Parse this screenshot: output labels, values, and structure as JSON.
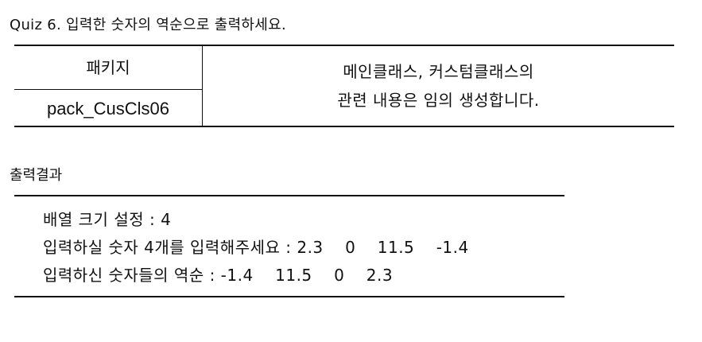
{
  "quiz_title": "Quiz 6. 입력한 숫자의 역순으로 출력하세요.",
  "package_table": {
    "header": "패키지",
    "package_name": "pack_CusCls06",
    "description_line1": "메인클래스, 커스텀클래스의",
    "description_line2": "관련 내용은 임의 생성합니다."
  },
  "output_title": "출력결과",
  "output_lines": [
    "배열 크기 설정 : 4",
    "입력하실 숫자 4개를 입력해주세요 : 2.3    0    11.5    -1.4",
    "입력하신 숫자들의 역순 : -1.4    11.5    0    2.3"
  ]
}
